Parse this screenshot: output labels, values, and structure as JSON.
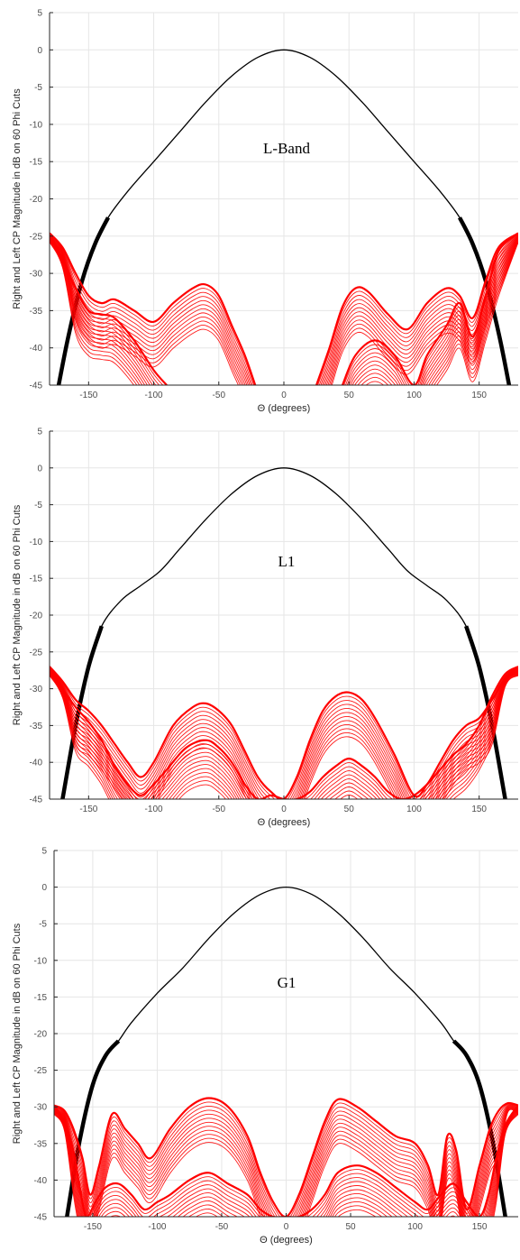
{
  "colors": {
    "copol": "#000000",
    "xpol": "#ff0000",
    "grid": "#e6e6e6",
    "axis": "#262626"
  },
  "chart_data": [
    {
      "type": "line",
      "band_label": "L-Band",
      "xlabel": "Θ (degrees)",
      "ylabel": "Right and Left CP Magnitude in dB on 60 Phi Cuts",
      "xlim": [
        -180,
        180
      ],
      "ylim": [
        -45,
        5
      ],
      "xticks": [
        -150,
        -100,
        -50,
        0,
        50,
        100,
        150
      ],
      "yticks": [
        5,
        0,
        -5,
        -10,
        -15,
        -20,
        -25,
        -30,
        -35,
        -40,
        -45
      ],
      "grid": true,
      "series": [
        {
          "role": "co-pol",
          "color": "#000000",
          "x": [
            -173,
            -165,
            -155,
            -145,
            -135,
            -120,
            -100,
            -80,
            -60,
            -40,
            -20,
            0,
            20,
            40,
            60,
            80,
            100,
            120,
            135,
            145,
            155,
            165,
            173
          ],
          "y": [
            -45,
            -38,
            -31,
            -26,
            -22.5,
            -19,
            -15,
            -11,
            -7,
            -3.5,
            -1,
            0,
            -1,
            -3.5,
            -7,
            -11,
            -15,
            -19,
            -22.5,
            -26,
            -31,
            -38,
            -45
          ]
        },
        {
          "role": "cross-pol-upper",
          "color": "#ff0000",
          "x": [
            -180,
            -170,
            -160,
            -150,
            -140,
            -130,
            -115,
            -100,
            -85,
            -70,
            -60,
            -50,
            -40,
            -30,
            -22,
            0,
            25,
            35,
            45,
            55,
            65,
            80,
            95,
            110,
            125,
            135,
            145,
            155,
            165,
            180
          ],
          "y": [
            -24.6,
            -26.5,
            -30,
            -33,
            -34,
            -33.5,
            -35,
            -36.5,
            -34,
            -32,
            -31.5,
            -33,
            -37,
            -41,
            -45,
            null,
            -45,
            -40,
            -34.5,
            -32,
            -32.5,
            -35.5,
            -37.5,
            -34,
            -32,
            -33,
            -36,
            -31,
            -26.5,
            -24.6
          ]
        },
        {
          "role": "cross-pol-lower",
          "color": "#ff0000",
          "x": [
            -180,
            -170,
            -160,
            -150,
            -140,
            -130,
            -115,
            -100,
            -90,
            -85,
            0,
            45,
            55,
            70,
            85,
            100,
            110,
            125,
            135,
            145,
            155,
            165,
            180
          ],
          "y": [
            -24.6,
            -28,
            -32,
            -35,
            -35.5,
            -36,
            -39,
            -43,
            -45,
            null,
            null,
            -45,
            -41,
            -39,
            -41,
            -45,
            -41,
            -37,
            -34,
            -38.5,
            -33,
            -27,
            -24.6
          ]
        }
      ]
    },
    {
      "type": "line",
      "band_label": "L1",
      "xlabel": "Θ (degrees)",
      "ylabel": "Right and Left CP Magnitude in dB on 60 Phi Cuts",
      "xlim": [
        -180,
        180
      ],
      "ylim": [
        -45,
        5
      ],
      "xticks": [
        -150,
        -100,
        -50,
        0,
        50,
        100,
        150
      ],
      "yticks": [
        5,
        0,
        -5,
        -10,
        -15,
        -20,
        -25,
        -30,
        -35,
        -40,
        -45
      ],
      "grid": true,
      "series": [
        {
          "role": "co-pol",
          "color": "#000000",
          "x": [
            -170,
            -160,
            -150,
            -140,
            -125,
            -110,
            -95,
            -80,
            -60,
            -40,
            -20,
            0,
            20,
            40,
            60,
            80,
            95,
            110,
            125,
            140,
            150,
            160,
            170
          ],
          "y": [
            -45,
            -35,
            -27,
            -21.5,
            -18,
            -16,
            -14,
            -11,
            -7,
            -3.5,
            -1,
            0,
            -1,
            -3.5,
            -7,
            -11,
            -14,
            -16,
            -18,
            -21.5,
            -27,
            -35,
            -45
          ]
        },
        {
          "role": "cross-pol-upper",
          "color": "#ff0000",
          "x": [
            -180,
            -170,
            -160,
            -150,
            -140,
            -130,
            -120,
            -110,
            -100,
            -85,
            -70,
            -60,
            -50,
            -40,
            -30,
            -20,
            -10,
            0,
            10,
            20,
            30,
            40,
            50,
            60,
            70,
            85,
            100,
            110,
            120,
            130,
            140,
            150,
            160,
            170,
            180
          ],
          "y": [
            -27,
            -29,
            -31.5,
            -33,
            -35,
            -37.5,
            -40,
            -42,
            -40,
            -35,
            -32.5,
            -32,
            -33,
            -35,
            -38.5,
            -42,
            -44,
            -45,
            -42,
            -37,
            -33,
            -31,
            -30.5,
            -31.5,
            -34,
            -39,
            -44.5,
            -43,
            -40,
            -37,
            -35,
            -34,
            -31.5,
            -28.5,
            -27
          ]
        },
        {
          "role": "cross-pol-lower",
          "color": "#ff0000",
          "x": [
            -180,
            -170,
            -160,
            -150,
            -140,
            -130,
            -120,
            -110,
            -100,
            -90,
            -75,
            -60,
            -50,
            -40,
            -30,
            -20,
            -10,
            0,
            10,
            20,
            30,
            40,
            50,
            60,
            70,
            80,
            90,
            100,
            110,
            120,
            130,
            140,
            150,
            160,
            170,
            180
          ],
          "y": [
            -27,
            -30,
            -32.5,
            -34.5,
            -37,
            -40.5,
            -43,
            -44.5,
            -43,
            -41,
            -38,
            -37,
            -38,
            -40,
            -43,
            -45,
            -44.5,
            -45,
            -45,
            -44,
            -42,
            -40.5,
            -39.5,
            -40.5,
            -42,
            -44,
            -45,
            -44.5,
            -43,
            -41,
            -39,
            -37.5,
            -35,
            -31,
            -28,
            -27
          ]
        }
      ]
    },
    {
      "type": "line",
      "band_label": "G1",
      "xlabel": "Θ (degrees)",
      "ylabel": "Right and Left CP Magnitude in dB on 60 Phi Cuts",
      "xlim": [
        -180,
        180
      ],
      "ylim": [
        -45,
        5
      ],
      "xticks": [
        -150,
        -100,
        -50,
        0,
        50,
        100,
        150
      ],
      "yticks": [
        5,
        0,
        -5,
        -10,
        -15,
        -20,
        -25,
        -30,
        -35,
        -40,
        -45
      ],
      "grid": true,
      "series": [
        {
          "role": "co-pol",
          "color": "#000000",
          "x": [
            -170,
            -160,
            -150,
            -140,
            -130,
            -120,
            -100,
            -80,
            -60,
            -40,
            -20,
            0,
            20,
            40,
            60,
            80,
            100,
            120,
            130,
            140,
            150,
            160,
            170
          ],
          "y": [
            -45,
            -34.5,
            -27,
            -23,
            -21,
            -18.5,
            -14.5,
            -11,
            -7,
            -3.5,
            -1,
            0,
            -1,
            -3.5,
            -7,
            -11,
            -14.5,
            -18.5,
            -21,
            -23,
            -27,
            -34.5,
            -45
          ]
        },
        {
          "role": "cross-pol-upper",
          "color": "#ff0000",
          "x": [
            -180,
            -172,
            -165,
            -158,
            -152,
            -145,
            -135,
            -125,
            -115,
            -105,
            -90,
            -75,
            -60,
            -45,
            -30,
            -20,
            -10,
            0,
            10,
            20,
            30,
            40,
            55,
            70,
            85,
            100,
            110,
            118,
            125,
            132,
            140,
            150,
            158,
            165,
            172,
            180
          ],
          "y": [
            -29.8,
            -30.5,
            -33,
            -37,
            -42,
            -38,
            -31,
            -33,
            -35,
            -37,
            -33,
            -30,
            -28.8,
            -30,
            -34,
            -39,
            -43,
            -45,
            -42,
            -37,
            -32,
            -29,
            -30,
            -32,
            -34,
            -35,
            -38,
            -42,
            -34,
            -36,
            -44,
            -38,
            -33,
            -30.5,
            -29.5,
            -29.8
          ]
        },
        {
          "role": "cross-pol-lower",
          "color": "#ff0000",
          "x": [
            -180,
            -172,
            -165,
            -160,
            -155,
            -148,
            -140,
            -130,
            -120,
            -110,
            -100,
            -90,
            -75,
            -60,
            -45,
            -30,
            -20,
            -10,
            0,
            10,
            20,
            30,
            40,
            55,
            70,
            85,
            100,
            110,
            120,
            130,
            140,
            150,
            157,
            163,
            170,
            180
          ],
          "y": [
            -29.8,
            -32,
            -36,
            -41,
            -45,
            -43,
            -41,
            -40.5,
            -42,
            -44,
            -43,
            -42,
            -40,
            -39,
            -40.5,
            -42,
            -44,
            -45,
            -45,
            -45,
            -44,
            -42,
            -39,
            -38,
            -39,
            -41,
            -43,
            -44,
            -42,
            -40.5,
            -43,
            -45,
            -42,
            -37,
            -32.5,
            -29.8
          ]
        }
      ]
    }
  ]
}
